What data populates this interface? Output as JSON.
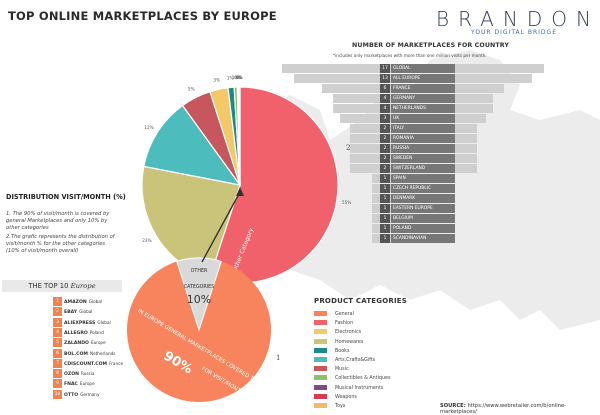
{
  "header": {
    "title": "TOP ONLINE MARKETPLACES BY EUROPE",
    "logo_name": "BRANDON",
    "logo_tagline": "YOUR DIGITAL BRIDGE"
  },
  "pyramid": {
    "title": "NUMBER OF MARKETPLACES FOR COUNTRY",
    "subtitle": "*includes only marketplaces with more than one million visits per month.",
    "rows": [
      {
        "count": "17",
        "country": "GLOBAL"
      },
      {
        "count": "13",
        "country": "ALL EUROPE"
      },
      {
        "count": "6",
        "country": "FRANCE"
      },
      {
        "count": "4",
        "country": "GERMANY"
      },
      {
        "count": "4",
        "country": "NETHERLANDS"
      },
      {
        "count": "3",
        "country": "UK"
      },
      {
        "count": "2",
        "country": "ITALY"
      },
      {
        "count": "2",
        "country": "ROMANIA"
      },
      {
        "count": "2",
        "country": "RUSSIA"
      },
      {
        "count": "2",
        "country": "SWEDEN"
      },
      {
        "count": "2",
        "country": "SWITZERLAND"
      },
      {
        "count": "1",
        "country": "SPAIN"
      },
      {
        "count": "1",
        "country": "CZECH REPUBLIC"
      },
      {
        "count": "1",
        "country": "DENMARK"
      },
      {
        "count": "1",
        "country": "EASTERN EUROPE"
      },
      {
        "count": "1",
        "country": "BELGIUM"
      },
      {
        "count": "1",
        "country": "POLAND"
      },
      {
        "count": "1",
        "country": "SCANDINAVIAN"
      }
    ]
  },
  "distribution": {
    "title": "DISTRIBUTION VISIT/MONTH (%)",
    "note1": "1. The 90% of visit/month is covered by general Marketplaces and only 10% by other categories",
    "note2": "2.The grafic represents the distribution of visit/month % for the other categories (10% of visit/month overall)"
  },
  "top10": {
    "title_main": "THE TOP 10",
    "title_region": "Europe",
    "items": [
      {
        "rank": "1",
        "name": "AMAZON",
        "country": "Global"
      },
      {
        "rank": "2",
        "name": "EBAY",
        "country": "Global"
      },
      {
        "rank": "3",
        "name": "ALIEXPRESS",
        "country": "Global"
      },
      {
        "rank": "4",
        "name": "ALLEGRO",
        "country": "Poland"
      },
      {
        "rank": "5",
        "name": "ZALANDO",
        "country": "Europe"
      },
      {
        "rank": "6",
        "name": "BOL.COM",
        "country": "Netherlands"
      },
      {
        "rank": "7",
        "name": "CDISCOUNT.COM",
        "country": "France"
      },
      {
        "rank": "8",
        "name": "OZON",
        "country": "Russia"
      },
      {
        "rank": "9",
        "name": "FNAC",
        "country": "Europe"
      },
      {
        "rank": "10",
        "name": "OTTO",
        "country": "Germany"
      }
    ]
  },
  "small_pie": {
    "other_label": "OTHER",
    "categories_label": "CATEGORIES",
    "other_value": "10%",
    "general_text_1": "IN EUROPE GENERAL MARKETPLACES COVERED THE",
    "general_value": "90%",
    "general_text_2": "FOR VISIT/MONTH",
    "marker": "1"
  },
  "big_pie": {
    "callout_label": "Other Category",
    "marker": "2"
  },
  "chart_data": {
    "type": "pie",
    "title": "DISTRIBUTION VISIT/MONTH (%)",
    "slices": [
      {
        "category": "Fashion",
        "value": 55,
        "label": "55%",
        "color": "#f0616b"
      },
      {
        "category": "Homewares",
        "value": 23,
        "label": "23%",
        "color": "#c9c47a"
      },
      {
        "category": "Arts,Crafts&Gifts",
        "value": 12,
        "label": "12%",
        "color": "#4cbcbc"
      },
      {
        "category": "Music",
        "value": 5,
        "label": "5%",
        "color": "#c8565e"
      },
      {
        "category": "Electronics",
        "value": 3,
        "label": "3%",
        "color": "#f3c968"
      },
      {
        "category": "Books",
        "value": 1,
        "label": "1%",
        "color": "#1d8a8a"
      },
      {
        "category": "Collectibles & Antiques",
        "value": 0.5,
        "label": "1%",
        "color": "#8fbf6a"
      },
      {
        "category": "Musical Instruments",
        "value": 0.2,
        "label": "0%",
        "color": "#7b4b8a"
      },
      {
        "category": "Weapons",
        "value": 0.15,
        "label": "0%",
        "color": "#d63b53"
      },
      {
        "category": "Toys",
        "value": 0.1,
        "label": "0%",
        "color": "#f0b96b"
      }
    ],
    "legend_title": "PRODUCT CATEGORIES",
    "legend": [
      {
        "label": "General",
        "color": "#f7845c"
      },
      {
        "label": "Fashion",
        "color": "#f0616b"
      },
      {
        "label": "Electronics",
        "color": "#f3c968"
      },
      {
        "label": "Homewares",
        "color": "#c9c47a"
      },
      {
        "label": "Books",
        "color": "#1d8a8a"
      },
      {
        "label": "Arts,Crafts&Gifts",
        "color": "#4cbcbc"
      },
      {
        "label": "Music",
        "color": "#c8565e"
      },
      {
        "label": "Collectibles & Antiques",
        "color": "#8fbf6a"
      },
      {
        "label": "Musical Instruments",
        "color": "#7b4b8a"
      },
      {
        "label": "Weapons",
        "color": "#d63b53"
      },
      {
        "label": "Toys",
        "color": "#f0b96b"
      }
    ],
    "overall": [
      {
        "category": "General",
        "value": 90,
        "label": "90%",
        "color": "#f7845c"
      },
      {
        "category": "Other categories",
        "value": 10,
        "label": "10%",
        "color": "#d9d9d9"
      }
    ]
  },
  "source": {
    "label": "SOURCE:",
    "text": "https://www.webretailer.com/b/online-marketplaces/"
  },
  "colors": {
    "accent": "#f2834f",
    "map": "#e6e6e6"
  }
}
